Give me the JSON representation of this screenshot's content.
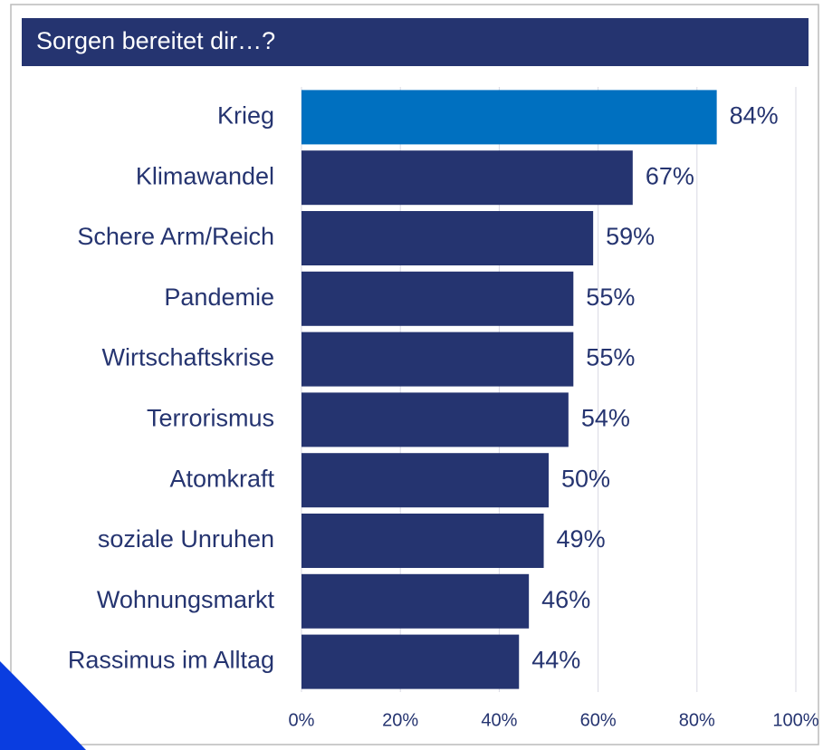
{
  "chart_data": {
    "type": "bar",
    "orientation": "horizontal",
    "title": "Sorgen bereitet dir…?",
    "categories": [
      "Krieg",
      "Klimawandel",
      "Schere Arm/Reich",
      "Pandemie",
      "Wirtschaftskrise",
      "Terrorismus",
      "Atomkraft",
      "soziale Unruhen",
      "Wohnungsmarkt",
      "Rassimus im Alltag"
    ],
    "values": [
      84,
      67,
      59,
      55,
      55,
      54,
      50,
      49,
      46,
      44
    ],
    "value_labels": [
      "84%",
      "67%",
      "59%",
      "55%",
      "55%",
      "54%",
      "50%",
      "49%",
      "46%",
      "44%"
    ],
    "colors": [
      "#0070c0",
      "#253470",
      "#253470",
      "#253470",
      "#253470",
      "#253470",
      "#253470",
      "#253470",
      "#253470",
      "#253470"
    ],
    "xlim": [
      0,
      100
    ],
    "xticks": [
      {
        "value": 0,
        "label": "0%"
      },
      {
        "value": 20,
        "label": "20%"
      },
      {
        "value": 40,
        "label": "40%"
      },
      {
        "value": 60,
        "label": "60%"
      },
      {
        "value": 80,
        "label": "80%"
      },
      {
        "value": 100,
        "label": "100%"
      }
    ],
    "grid": true
  }
}
